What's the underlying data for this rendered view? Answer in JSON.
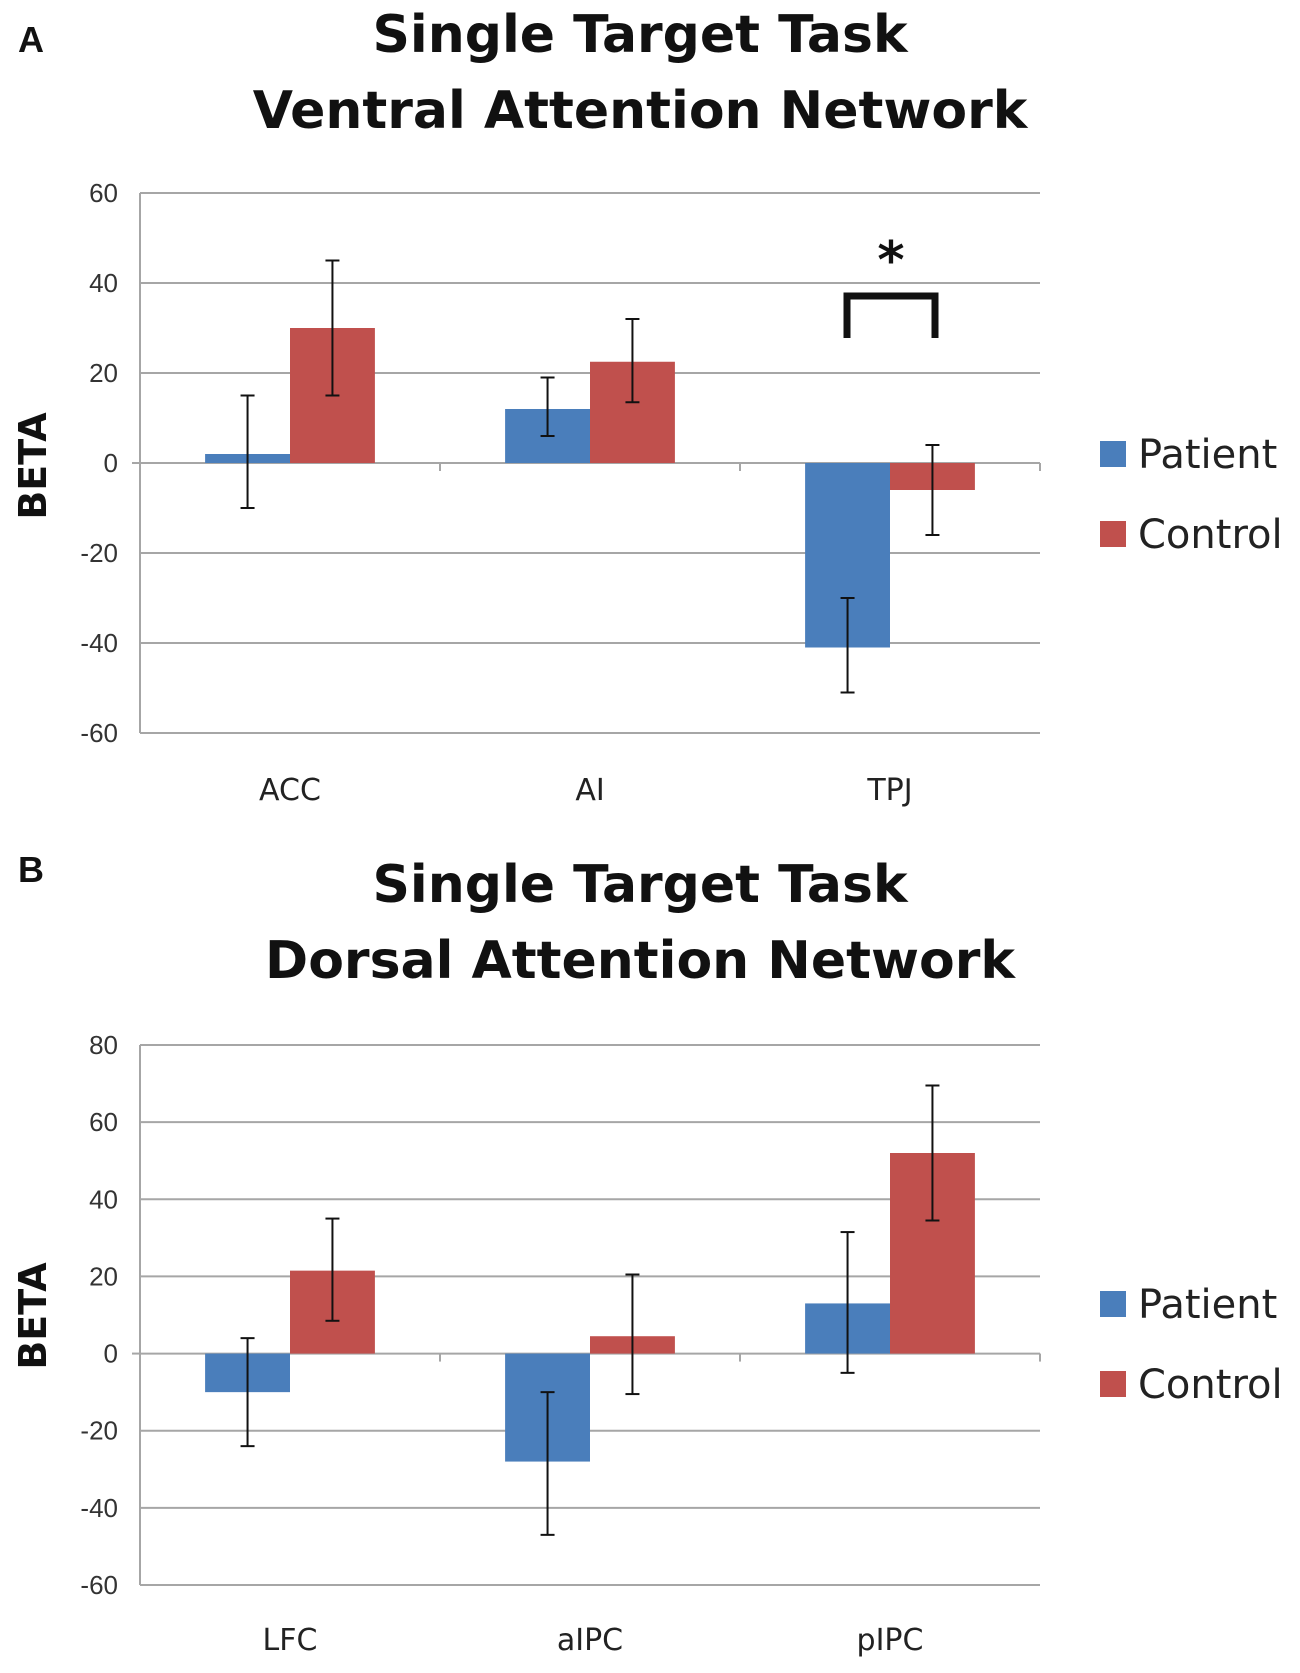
{
  "colors": {
    "patient": "#4a7ebb",
    "control": "#c0504d",
    "grid": "#a6a6a6"
  },
  "chart_data": [
    {
      "panel_label": "A",
      "type": "bar",
      "title_line1": "Single Target Task",
      "title_line2": "Ventral Attention Network",
      "ylabel": "BETA",
      "ylim": [
        -60,
        60
      ],
      "yticks": [
        60,
        40,
        20,
        0,
        -20,
        -40,
        -60
      ],
      "ytick_labels": [
        "60",
        "40",
        "20",
        "0",
        "-20",
        "-40",
        "-60"
      ],
      "categories": [
        "ACC",
        "AI",
        "TPJ"
      ],
      "series": [
        {
          "name": "Patient",
          "values": [
            2,
            12,
            -41
          ],
          "error_low": [
            -10,
            6,
            -51
          ],
          "error_high": [
            15,
            19,
            -30
          ]
        },
        {
          "name": "Control",
          "values": [
            30,
            22.5,
            -6
          ],
          "error_low": [
            15,
            13.5,
            -16
          ],
          "error_high": [
            45,
            32,
            4
          ]
        }
      ],
      "significance": {
        "category": "TPJ",
        "marker": "*"
      },
      "legend": [
        "Patient",
        "Control"
      ],
      "legend_position": "right"
    },
    {
      "panel_label": "B",
      "type": "bar",
      "title_line1": "Single Target Task",
      "title_line2": "Dorsal Attention Network",
      "ylabel": "BETA",
      "ylim": [
        -60,
        80
      ],
      "yticks": [
        80,
        60,
        40,
        20,
        0,
        -20,
        -40,
        -60
      ],
      "ytick_labels": [
        "80",
        "60",
        "40",
        "20",
        "0",
        "-20",
        "-40",
        "-60"
      ],
      "categories": [
        "LFC",
        "aIPC",
        "pIPC"
      ],
      "series": [
        {
          "name": "Patient",
          "values": [
            -10,
            -28,
            13
          ],
          "error_low": [
            -24,
            -47,
            -5
          ],
          "error_high": [
            4,
            -10,
            31.5
          ]
        },
        {
          "name": "Control",
          "values": [
            21.5,
            4.5,
            52
          ],
          "error_low": [
            8.5,
            -10.5,
            34.5
          ],
          "error_high": [
            35,
            20.5,
            69.5
          ]
        }
      ],
      "legend": [
        "Patient",
        "Control"
      ],
      "legend_position": "right"
    }
  ]
}
